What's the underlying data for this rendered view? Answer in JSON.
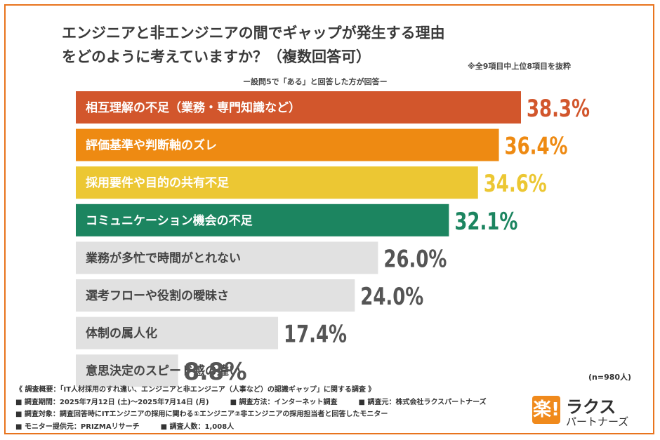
{
  "chart_data": {
    "type": "bar",
    "orientation": "horizontal",
    "title_lines": [
      "エンジニアと非エンジニアの間でギャップが発生する理由",
      "をどのように考えていますか？（複数回答可）"
    ],
    "subtitle": "ー設問5で「ある」と回答した方が回答ー",
    "note": "※全9項目中上位8項目を抜粋",
    "sample_note": "(n=980人)",
    "value_unit": "%",
    "xlim": [
      0,
      40
    ],
    "categories": [
      "相互理解の不足（業務・専門知識など）",
      "評価基準や判断軸のズレ",
      "採用要件や目的の共有不足",
      "コミュニケーション機会の不足",
      "業務が多忙で時間がとれない",
      "選考フローや役割の曖昧さ",
      "体制の属人化",
      "意思決定のスピード感の違い"
    ],
    "values": [
      38.3,
      36.4,
      34.6,
      32.1,
      26.0,
      24.0,
      17.4,
      8.8
    ],
    "value_labels": [
      "38.3%",
      "36.4%",
      "34.6%",
      "32.1%",
      "26.0%",
      "24.0%",
      "17.4%",
      "8.8%"
    ],
    "bar_colors": [
      "#d2562c",
      "#ee8a12",
      "#ecc733",
      "#1c8560",
      "#e1e1e1",
      "#e1e1e1",
      "#e1e1e1",
      "#e1e1e1"
    ],
    "label_colors": [
      "#ffffff",
      "#ffffff",
      "#ffffff",
      "#ffffff",
      "#444444",
      "#444444",
      "#444444",
      "#444444"
    ],
    "value_colors": [
      "#d2562c",
      "#ee8a12",
      "#ecc733",
      "#1c8560",
      "#555555",
      "#555555",
      "#555555",
      "#555555"
    ]
  },
  "footer": {
    "overview": "《 調査概要：「IT人材採用のすれ違い、エンジニアと非エンジニア（人事など）の認識ギャップ」に関する調査 》",
    "period": "■ 調査期間：2025年7月12日 (土)～2025年7月14日 (月)",
    "method": "■ 調査方法：インターネット調査",
    "organizer": "■ 調査元：株式会社ラクスパートナーズ",
    "target": "■ 調査対象：調査回答時にITエンジニアの採用に関わる①エンジニア②非エンジニアの採用担当者と回答したモニター",
    "provider": "■ モニター提供元：PRIZMAリサーチ",
    "count": "■ 調査人数：1,008人"
  },
  "logo": {
    "mark": "楽!",
    "main": "ラクス",
    "sub": "パートナーズ"
  },
  "colors": {
    "frame": "#e8741e",
    "logo_accent": "#f08a1c"
  }
}
